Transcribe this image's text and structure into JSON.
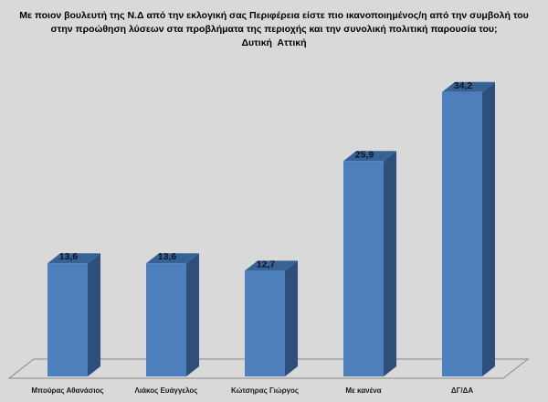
{
  "title": {
    "line1": "Με ποιον βουλευτή της Ν.Δ από την εκλογική σας Περιφέρεια είστε πιο ικανοποιημένος/η από την συμβολή του",
    "line2": "στην προώθηση λύσεων στα προβλήματα της περιοχής και την συνολική πολιτική παρουσία του;",
    "line3": "Δυτική  Αττική"
  },
  "chart_data": {
    "type": "bar",
    "style": "3d-column",
    "title": "Με ποιον βουλευτή της Ν.Δ από την εκλογική σας Περιφέρεια είστε πιο ικανοποιημένος/η από την συμβολή του στην προώθηση λύσεων στα προβλήματα της περιοχής και την συνολική πολιτική παρουσία του;",
    "subtitle": "Δυτική Αττική",
    "categories": [
      "Μπούρας Αθανάσιος",
      "Λιάκος Ευάγγελος",
      "Κώτσηρας Γιώργος",
      "Με κανένα",
      "ΔΓ/ΔΑ"
    ],
    "values": [
      13.6,
      13.6,
      12.7,
      25.9,
      34.2
    ],
    "value_labels": [
      "13,6",
      "13,6",
      "12,7",
      "25,9",
      "34,2"
    ],
    "xlabel": "",
    "ylabel": "",
    "ylim": [
      0,
      36
    ],
    "grid": false,
    "legend": false,
    "value_axis_visible": false,
    "colors": {
      "background": "#d9d9d9",
      "bar_front": "#4d7fbd",
      "bar_top": "#366295",
      "bar_side": "#2d4f79",
      "floor_outline": "#898989",
      "data_label": "#121225",
      "category_label": "#1a1a1a",
      "title_text": "#000000"
    }
  }
}
